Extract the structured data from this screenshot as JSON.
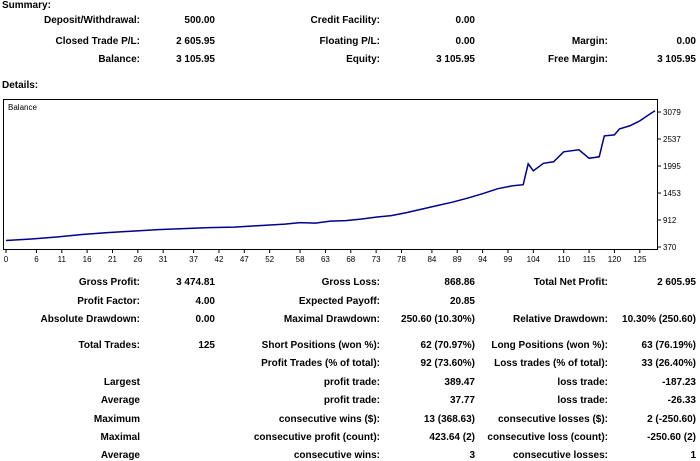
{
  "summary": {
    "title": "Summary:",
    "rows": [
      [
        {
          "label": "Deposit/Withdrawal:",
          "value": "500.00"
        },
        {
          "label": "Credit Facility:",
          "value": "0.00"
        },
        {
          "label": "",
          "value": ""
        }
      ],
      [
        {
          "label": "Closed Trade P/L:",
          "value": "2 605.95"
        },
        {
          "label": "Floating P/L:",
          "value": "0.00"
        },
        {
          "label": "Margin:",
          "value": "0.00"
        }
      ],
      [
        {
          "label": "Balance:",
          "value": "3 105.95"
        },
        {
          "label": "Equity:",
          "value": "3 105.95"
        },
        {
          "label": "Free Margin:",
          "value": "3 105.95"
        }
      ]
    ]
  },
  "details": {
    "title": "Details:",
    "rows": [
      [
        "Gross Profit:",
        "3 474.81",
        "Gross Loss:",
        "868.86",
        "Total Net Profit:",
        "2 605.95"
      ],
      [
        "Profit Factor:",
        "4.00",
        "Expected Payoff:",
        "20.85",
        "",
        ""
      ],
      [
        "Absolute Drawdown:",
        "0.00",
        "Maximal Drawdown:",
        "250.60 (10.30%)",
        "Relative Drawdown:",
        "10.30% (250.60)"
      ],
      [
        "Total Trades:",
        "125",
        "Short Positions (won %):",
        "62 (70.97%)",
        "Long Positions (won %):",
        "63 (76.19%)"
      ],
      [
        "",
        "",
        "Profit Trades (% of total):",
        "92 (73.60%)",
        "Loss trades (% of total):",
        "33 (26.40%)"
      ],
      [
        "Largest",
        "",
        "profit trade:",
        "389.47",
        "loss trade:",
        "-187.23"
      ],
      [
        "Average",
        "",
        "profit trade:",
        "37.77",
        "loss trade:",
        "-26.33"
      ],
      [
        "Maximum",
        "",
        "consecutive wins ($):",
        "13 (368.63)",
        "consecutive losses ($):",
        "2 (-250.60)"
      ],
      [
        "Maximal",
        "",
        "consecutive profit (count):",
        "423.64 (2)",
        "consecutive loss (count):",
        "-250.60 (2)"
      ],
      [
        "Average",
        "",
        "consecutive wins:",
        "3",
        "consecutive losses:",
        "1"
      ]
    ]
  },
  "chart_data": {
    "type": "line",
    "title": "Balance",
    "xlabel": "",
    "ylabel": "",
    "line_color": "#00008b",
    "xlim": [
      0,
      128
    ],
    "ylim": [
      370,
      3260
    ],
    "x_ticks": [
      0,
      6,
      11,
      16,
      21,
      26,
      31,
      37,
      42,
      47,
      52,
      58,
      63,
      68,
      73,
      78,
      84,
      89,
      94,
      99,
      104,
      110,
      115,
      120,
      125
    ],
    "y_ticks": [
      370,
      912,
      1453,
      1995,
      2537,
      3079
    ],
    "series": [
      {
        "name": "Balance",
        "points": [
          [
            0,
            500
          ],
          [
            5,
            530
          ],
          [
            10,
            570
          ],
          [
            15,
            620
          ],
          [
            20,
            660
          ],
          [
            25,
            690
          ],
          [
            30,
            720
          ],
          [
            35,
            740
          ],
          [
            40,
            760
          ],
          [
            45,
            770
          ],
          [
            50,
            800
          ],
          [
            55,
            830
          ],
          [
            58,
            860
          ],
          [
            61,
            850
          ],
          [
            64,
            890
          ],
          [
            67,
            900
          ],
          [
            70,
            930
          ],
          [
            73,
            970
          ],
          [
            76,
            1000
          ],
          [
            79,
            1060
          ],
          [
            82,
            1130
          ],
          [
            85,
            1200
          ],
          [
            88,
            1270
          ],
          [
            91,
            1350
          ],
          [
            94,
            1440
          ],
          [
            97,
            1540
          ],
          [
            100,
            1600
          ],
          [
            102,
            1620
          ],
          [
            103,
            2040
          ],
          [
            104,
            1900
          ],
          [
            106,
            2050
          ],
          [
            108,
            2080
          ],
          [
            110,
            2280
          ],
          [
            113,
            2320
          ],
          [
            115,
            2150
          ],
          [
            117,
            2180
          ],
          [
            118,
            2600
          ],
          [
            120,
            2620
          ],
          [
            121,
            2740
          ],
          [
            123,
            2800
          ],
          [
            125,
            2900
          ],
          [
            127,
            3040
          ],
          [
            128,
            3106
          ]
        ]
      }
    ]
  }
}
